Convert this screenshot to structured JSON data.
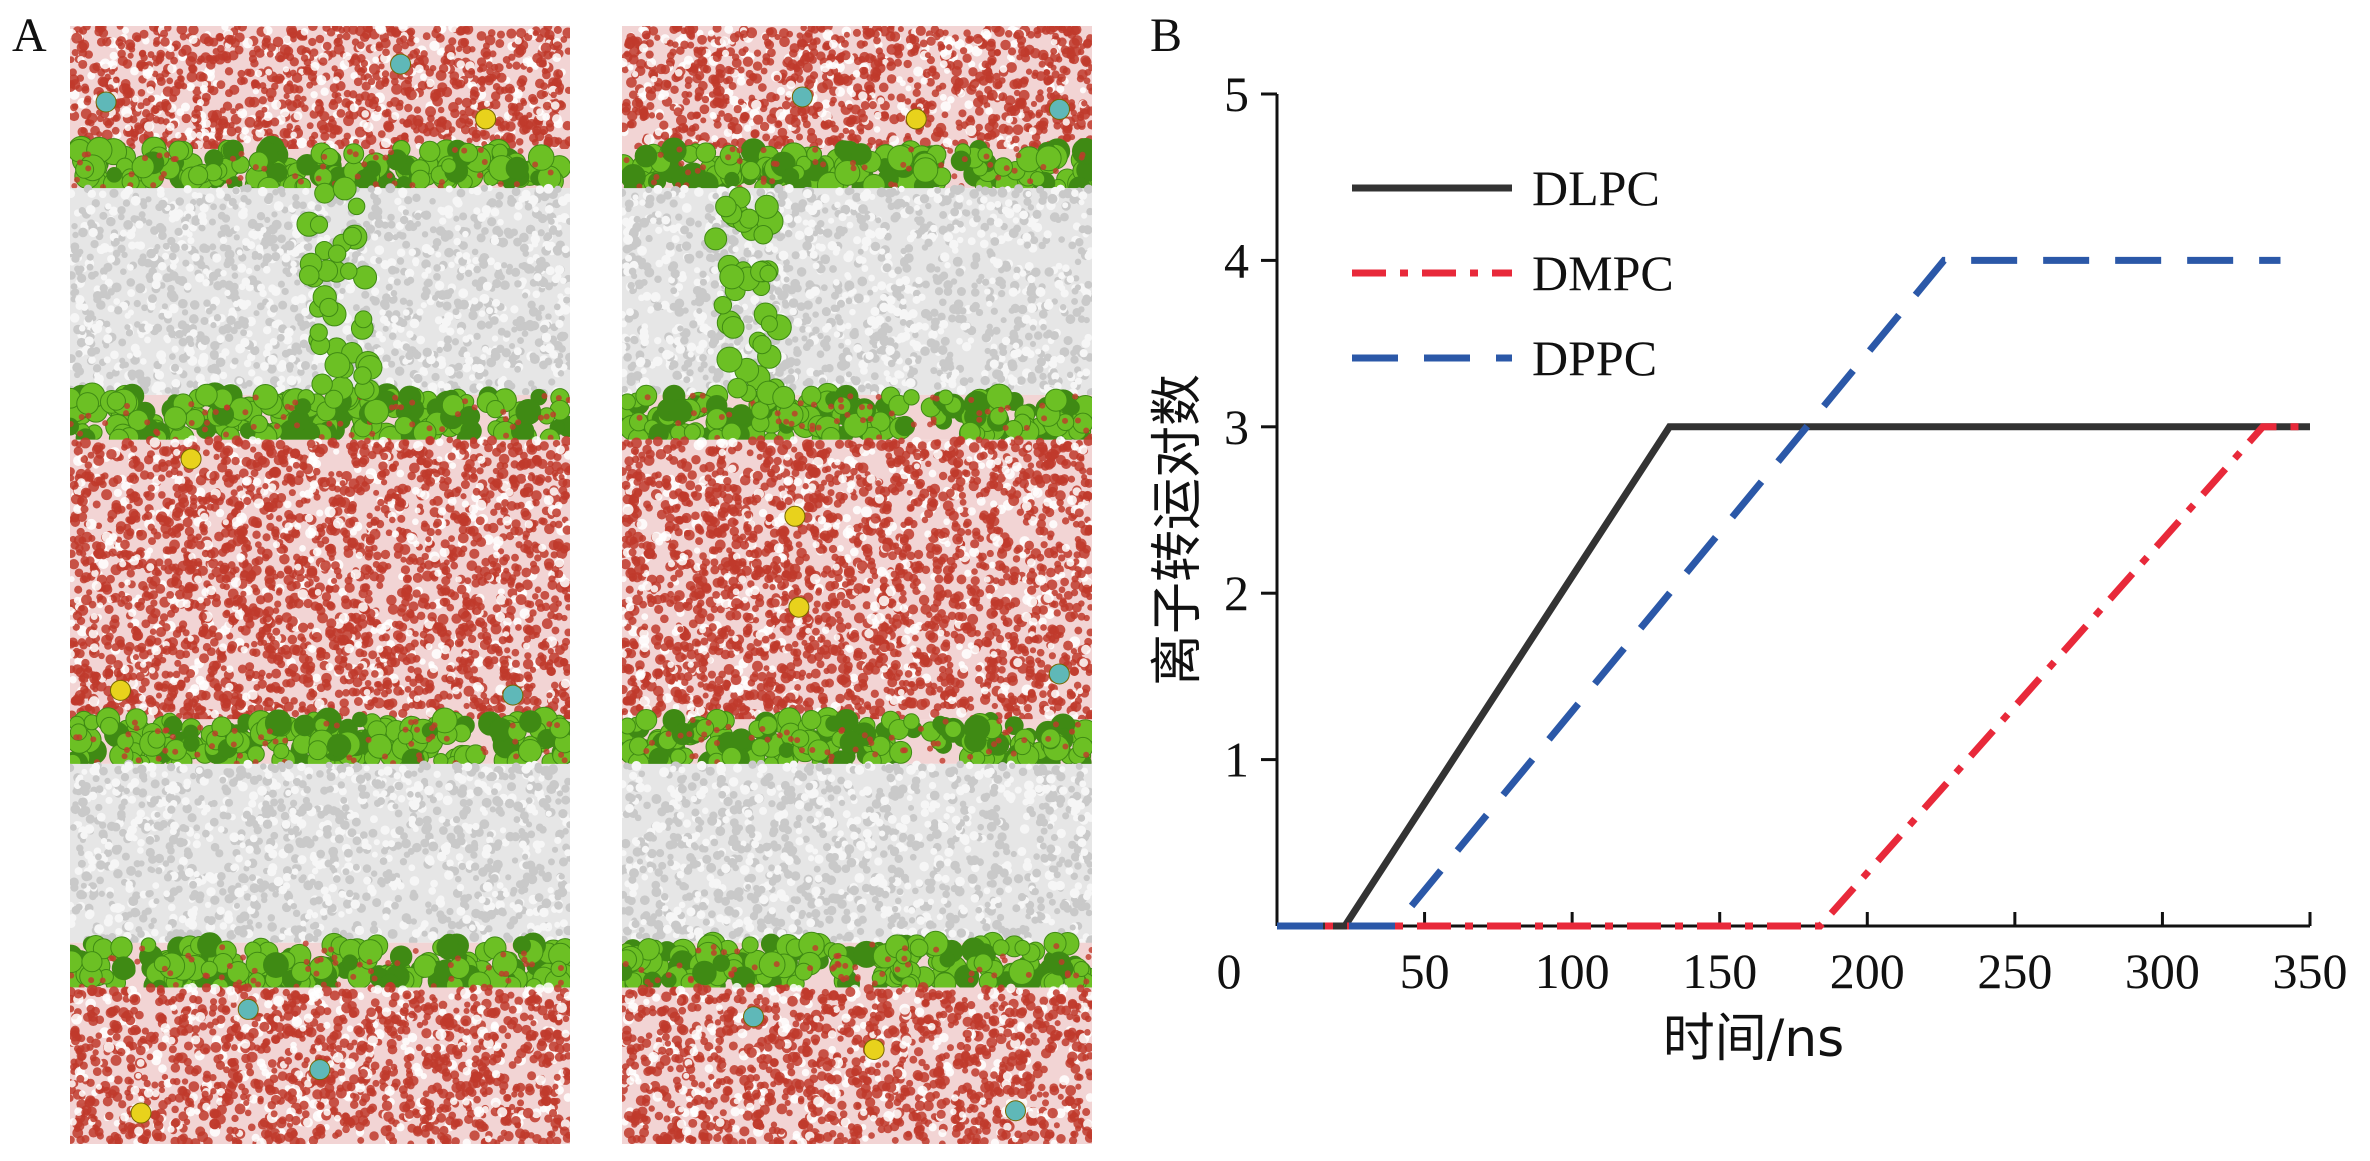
{
  "panels": {
    "a_label": "A",
    "b_label": "B"
  },
  "simulation_snapshots": {
    "count": 2,
    "colors": {
      "water": "#c0392b",
      "water_light": "#f2d4d4",
      "lipid_tail": "#c9c9c9",
      "headgroup": "#6cc024",
      "headgroup_dark": "#3f8a14",
      "ion_yellow": "#e8d21c",
      "ion_cyan": "#5fb8b8"
    }
  },
  "chart_data": {
    "type": "line",
    "xlabel": "时间/ns",
    "ylabel": "离子转运对数",
    "xlim": [
      0,
      350
    ],
    "ylim": [
      0,
      5
    ],
    "xticks": [
      "0",
      "50",
      "100",
      "150",
      "200",
      "250",
      "300",
      "350"
    ],
    "yticks": [
      "1",
      "2",
      "3",
      "4",
      "5"
    ],
    "grid": false,
    "legend_position": "top-left",
    "series": [
      {
        "name": "DLPC",
        "color": "#333333",
        "dash": "solid",
        "x": [
          0,
          23,
          133,
          350
        ],
        "y": [
          0,
          0,
          3,
          3
        ]
      },
      {
        "name": "DMPC",
        "color": "#e8293a",
        "dash": "dashdot",
        "x": [
          0,
          184,
          334,
          350
        ],
        "y": [
          0,
          0,
          3,
          3
        ]
      },
      {
        "name": "DPPC",
        "color": "#2b58a8",
        "dash": "dashed",
        "x": [
          0,
          40,
          226,
          340
        ],
        "y": [
          0,
          0,
          4,
          4
        ]
      }
    ]
  }
}
